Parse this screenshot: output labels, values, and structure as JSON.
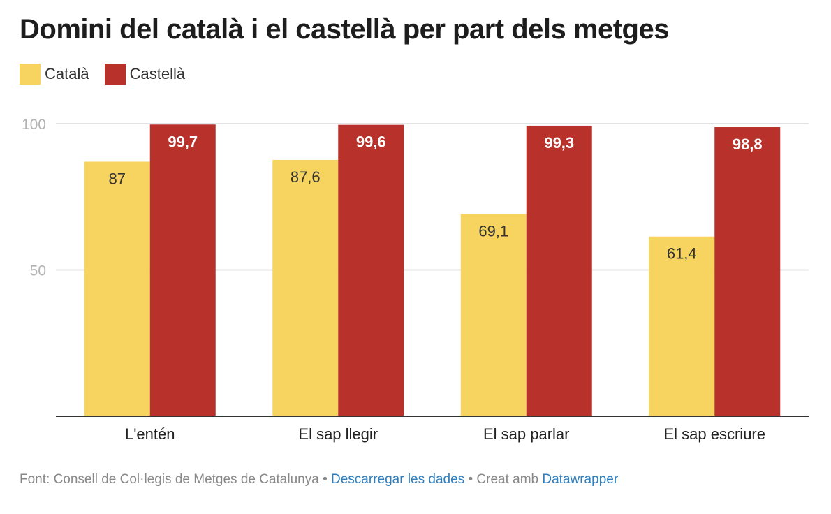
{
  "chart_data": {
    "type": "bar",
    "title": "Domini del català i el castellà per part dels metges",
    "categories": [
      "L'entén",
      "El sap llegir",
      "El sap parlar",
      "El sap escriure"
    ],
    "series": [
      {
        "name": "Català",
        "color": "#f7d35f",
        "values": [
          87,
          87.6,
          69.1,
          61.4
        ],
        "labels": [
          "87",
          "87,6",
          "69,1",
          "61,4"
        ]
      },
      {
        "name": "Castellà",
        "color": "#b8312a",
        "values": [
          99.7,
          99.6,
          99.3,
          98.8
        ],
        "labels": [
          "99,7",
          "99,6",
          "99,3",
          "98,8"
        ]
      }
    ],
    "ylim": [
      0,
      100
    ],
    "yticks": [
      {
        "value": 100,
        "label": "100"
      },
      {
        "value": 50,
        "label": "50"
      }
    ],
    "grid": true,
    "legend": "top-left",
    "xlabel": "",
    "ylabel": ""
  },
  "footer": {
    "source": "Font: Consell de Col·legis de Metges de Catalunya",
    "separator": "•",
    "download": "Descarregar les dades",
    "created": "Creat amb",
    "tool": "Datawrapper"
  }
}
